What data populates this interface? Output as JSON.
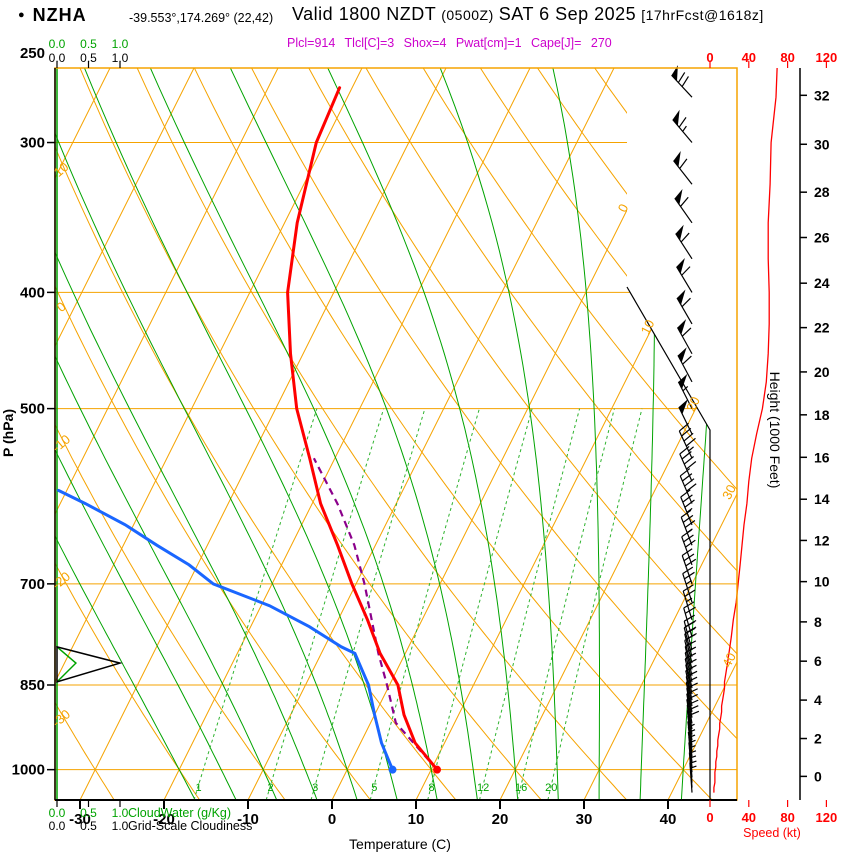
{
  "header": {
    "bullet": "●",
    "station": "NZHA",
    "coords": "-39.553°,174.269° (22,42)",
    "valid_main": "Valid 1800 NZDT",
    "valid_z": "(0500Z)",
    "valid_date": "SAT 6 Sep 2025",
    "fcst": "[17hrFcst@1618z]",
    "params": "Plcl=914 Tlcl[C]=3 Shox=4 Pwat[cm]=1 Cape[J]= 270"
  },
  "axes": {
    "pressure_label": "P (hPa)",
    "pressure_ticks": [
      250,
      300,
      400,
      500,
      700,
      850,
      1000
    ],
    "temp_label": "Temperature (C)",
    "temp_ticks": [
      -30,
      -20,
      -10,
      0,
      10,
      20,
      30,
      40
    ],
    "height_label": "Height (1000 Feet)",
    "height_ticks": [
      0,
      2,
      4,
      6,
      8,
      10,
      12,
      14,
      16,
      18,
      20,
      22,
      24,
      26,
      28,
      30,
      32
    ],
    "speed_label": "Speed (kt)",
    "speed_ticks": [
      0,
      40,
      80,
      120
    ],
    "scale_ticks": [
      "0.0",
      "0.5",
      "1.0"
    ],
    "cloudwater_label": "CloudWater (g/Kg)",
    "cloudiness_label": "Grid-Scale Cloudiness"
  },
  "colors": {
    "orange": "#F5A300",
    "green": "#00A300",
    "green_dashed": "#2FB32F",
    "red": "#FF0000",
    "blue": "#1A66FF",
    "parcel": "#8B008B",
    "magenta": "#CC00CC",
    "black": "#000000"
  },
  "chart_data": {
    "type": "line",
    "subtype": "skew-t-log-p-sounding",
    "pressure_range": [
      250,
      1050
    ],
    "temp_axis_range": [
      -35,
      45
    ],
    "temperature": [
      [
        1000,
        10.7
      ],
      [
        950,
        6.5
      ],
      [
        900,
        3.5
      ],
      [
        850,
        1
      ],
      [
        800,
        -3
      ],
      [
        750,
        -6.5
      ],
      [
        700,
        -10.5
      ],
      [
        650,
        -14.5
      ],
      [
        600,
        -19
      ],
      [
        550,
        -23
      ],
      [
        500,
        -27.5
      ],
      [
        450,
        -31.5
      ],
      [
        400,
        -35.5
      ],
      [
        350,
        -38.5
      ],
      [
        300,
        -41
      ],
      [
        270,
        -41.5
      ]
    ],
    "dewpoint": [
      [
        1000,
        5.4
      ],
      [
        950,
        2.5
      ],
      [
        900,
        0
      ],
      [
        850,
        -2.5
      ],
      [
        800,
        -6
      ],
      [
        790,
        -8
      ],
      [
        760,
        -13
      ],
      [
        730,
        -19
      ],
      [
        700,
        -27
      ],
      [
        675,
        -31
      ],
      [
        650,
        -36
      ],
      [
        625,
        -41
      ],
      [
        600,
        -47
      ],
      [
        585,
        -51
      ]
    ],
    "parcel": [
      [
        1000,
        10.7
      ],
      [
        914,
        3
      ],
      [
        850,
        -0.3
      ],
      [
        800,
        -3.2
      ],
      [
        750,
        -6
      ],
      [
        700,
        -9
      ],
      [
        650,
        -12.5
      ],
      [
        600,
        -17
      ],
      [
        550,
        -22.5
      ]
    ],
    "wind_barbs": [
      [
        1045,
        4,
        356
      ],
      [
        1035,
        4,
        356
      ],
      [
        1025,
        5,
        355
      ],
      [
        1015,
        5,
        355
      ],
      [
        1005,
        5,
        354
      ],
      [
        995,
        6,
        354
      ],
      [
        985,
        6,
        353
      ],
      [
        975,
        7,
        353
      ],
      [
        965,
        7,
        352
      ],
      [
        955,
        8,
        352
      ],
      [
        945,
        8,
        351
      ],
      [
        935,
        9,
        351
      ],
      [
        925,
        10,
        350
      ],
      [
        915,
        10,
        350
      ],
      [
        905,
        11,
        350
      ],
      [
        895,
        12,
        349
      ],
      [
        885,
        12,
        349
      ],
      [
        875,
        13,
        348
      ],
      [
        865,
        14,
        348
      ],
      [
        855,
        15,
        347
      ],
      [
        845,
        15,
        347
      ],
      [
        835,
        16,
        347
      ],
      [
        825,
        17,
        346
      ],
      [
        815,
        18,
        346
      ],
      [
        805,
        19,
        345
      ],
      [
        795,
        20,
        345
      ],
      [
        775,
        22,
        344
      ],
      [
        750,
        24,
        343
      ],
      [
        725,
        27,
        342
      ],
      [
        700,
        29,
        341
      ],
      [
        675,
        31,
        340
      ],
      [
        650,
        33,
        339
      ],
      [
        625,
        35,
        338
      ],
      [
        600,
        38,
        337
      ],
      [
        575,
        40,
        336
      ],
      [
        550,
        43,
        335
      ],
      [
        525,
        48,
        334
      ],
      [
        500,
        54,
        333
      ],
      [
        475,
        58,
        332
      ],
      [
        450,
        60,
        331
      ],
      [
        425,
        61,
        330
      ],
      [
        400,
        61,
        329
      ],
      [
        375,
        60,
        327
      ],
      [
        350,
        60,
        325
      ],
      [
        325,
        62,
        322
      ],
      [
        300,
        63,
        320
      ],
      [
        275,
        68,
        317
      ],
      [
        250,
        70,
        315
      ]
    ],
    "isotherm_step": 10,
    "isotherm_label_values": [
      0,
      10,
      20,
      30,
      40
    ],
    "dry_adiabat_label_values": [
      10,
      0,
      -10,
      -20,
      -30
    ],
    "mixing_ratio_lines": [
      1,
      2,
      3,
      5,
      8,
      12,
      16,
      20
    ],
    "moist_adiabat_values": [
      -20,
      -15,
      -10,
      -5,
      0,
      5,
      10,
      15,
      20,
      25,
      30,
      35,
      40
    ],
    "cloud_water_gkg": [
      [
        790,
        0.0
      ],
      [
        815,
        1.0
      ],
      [
        845,
        0.0
      ]
    ],
    "cloudiness": [
      [
        790,
        0.0
      ],
      [
        815,
        0.3
      ],
      [
        845,
        0.0
      ]
    ],
    "height_pressure_pairs": [
      [
        0,
        1013
      ],
      [
        2,
        942
      ],
      [
        4,
        875
      ],
      [
        6,
        812
      ],
      [
        8,
        753
      ],
      [
        10,
        697
      ],
      [
        12,
        644
      ],
      [
        14,
        595
      ],
      [
        16,
        549
      ],
      [
        18,
        506
      ],
      [
        20,
        466
      ],
      [
        22,
        428
      ],
      [
        24,
        393
      ],
      [
        26,
        360
      ],
      [
        28,
        330
      ],
      [
        30,
        301
      ],
      [
        32,
        274
      ]
    ]
  }
}
